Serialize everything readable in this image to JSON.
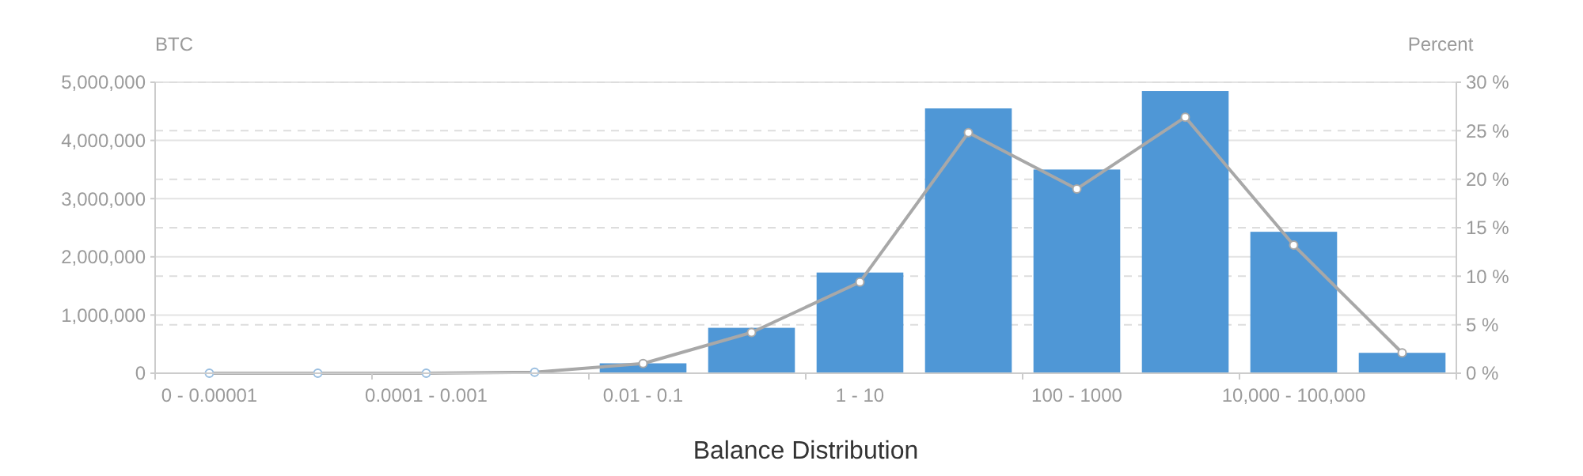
{
  "chart_data": {
    "type": "bar",
    "xlabel": "Balance Distribution",
    "ylabel": "BTC",
    "y2label": "Percent",
    "categories": [
      "0 - 0.00001",
      null,
      "0.0001 - 0.001",
      null,
      "0.01 - 0.1",
      null,
      "1 - 10",
      null,
      "100 - 1000",
      null,
      "10,000 - 100,000",
      null
    ],
    "series": [
      {
        "color": "#4f97d6",
        "values": [
          0,
          0,
          0,
          null,
          170000,
          780000,
          1730000,
          4550000,
          3500000,
          4850000,
          2430000,
          350000
        ]
      },
      {
        "type": "line",
        "axis": "y2",
        "color": "#a8a8a8",
        "values": [
          0,
          0,
          0,
          0.1,
          1.0,
          4.2,
          9.4,
          24.8,
          19.0,
          26.4,
          13.2,
          2.1
        ]
      }
    ],
    "ylim": [
      0,
      5000000
    ],
    "yticks": [
      {
        "value": 0,
        "label": "0"
      },
      {
        "value": 1000000,
        "label": "1,000,000"
      },
      {
        "value": 2000000,
        "label": "2,000,000"
      },
      {
        "value": 3000000,
        "label": "3,000,000"
      },
      {
        "value": 4000000,
        "label": "4,000,000"
      },
      {
        "value": 5000000,
        "label": "5,000,000"
      }
    ],
    "y2lim": [
      0,
      30
    ],
    "y2ticks": [
      {
        "value": 0,
        "label": "0 %"
      },
      {
        "value": 5,
        "label": "5 %"
      },
      {
        "value": 10,
        "label": "10 %"
      },
      {
        "value": 15,
        "label": "15 %"
      },
      {
        "value": 20,
        "label": "20 %"
      },
      {
        "value": 25,
        "label": "25 %"
      },
      {
        "value": 30,
        "label": "30 %"
      }
    ],
    "grid": true,
    "marker": "circle"
  }
}
